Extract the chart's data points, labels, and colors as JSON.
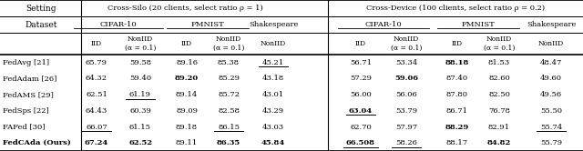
{
  "group1_header": "Cross-Silo (20 clients, select ratio ρ = 1)",
  "group2_header": "Cross-Device (100 clients, select ratio ρ = 0.2)",
  "row_labels": [
    "FedAvg [21]",
    "FedAdam [26]",
    "FedAMS [29]",
    "FedSps [22]",
    "FAFed [30]",
    "FedCAda (Ours)"
  ],
  "row_label_bold": [
    false,
    false,
    false,
    false,
    false,
    true
  ],
  "display_vals_g1": [
    [
      "65.79",
      "59.58",
      "89.16",
      "85.38",
      "45.21"
    ],
    [
      "64.32",
      "59.40",
      "89.20",
      "85.29",
      "43.18"
    ],
    [
      "62.51",
      "61.19",
      "89.14",
      "85.72",
      "43.01"
    ],
    [
      "64.43",
      "60.39",
      "89.09",
      "82.58",
      "43.29"
    ],
    [
      "66.07",
      "61.15",
      "89.18",
      "86.15",
      "43.03"
    ],
    [
      "67.24",
      "62.52",
      "89.11",
      "86.35",
      "45.84"
    ]
  ],
  "display_vals_g2": [
    [
      "56.71",
      "53.34",
      "88.18",
      "81.53",
      "48.47"
    ],
    [
      "57.29",
      "59.06",
      "87.40",
      "82.60",
      "49.60"
    ],
    [
      "56.00",
      "56.06",
      "87.80",
      "82.50",
      "49.56"
    ],
    [
      "63.04",
      "53.79",
      "86.71",
      "76.78",
      "55.50"
    ],
    [
      "62.70",
      "57.97",
      "88.29",
      "82.91",
      "55.74"
    ],
    [
      "66.508",
      "58.26",
      "88.17",
      "84.82",
      "55.79"
    ]
  ],
  "bold_g1": [
    [
      false,
      false,
      false,
      false,
      false
    ],
    [
      false,
      false,
      true,
      false,
      false
    ],
    [
      false,
      false,
      false,
      false,
      false
    ],
    [
      false,
      false,
      false,
      false,
      false
    ],
    [
      false,
      false,
      false,
      false,
      false
    ],
    [
      true,
      true,
      false,
      true,
      true
    ]
  ],
  "bold_g2": [
    [
      false,
      false,
      true,
      false,
      false
    ],
    [
      false,
      true,
      false,
      false,
      false
    ],
    [
      false,
      false,
      false,
      false,
      false
    ],
    [
      true,
      false,
      false,
      false,
      false
    ],
    [
      false,
      false,
      true,
      false,
      false
    ],
    [
      true,
      false,
      false,
      true,
      false
    ]
  ],
  "underline_g1": [
    [
      false,
      false,
      false,
      false,
      true
    ],
    [
      false,
      false,
      false,
      false,
      false
    ],
    [
      false,
      true,
      false,
      false,
      false
    ],
    [
      false,
      false,
      false,
      false,
      false
    ],
    [
      true,
      false,
      false,
      true,
      false
    ],
    [
      false,
      false,
      false,
      false,
      false
    ]
  ],
  "underline_g2": [
    [
      false,
      false,
      false,
      false,
      false
    ],
    [
      false,
      false,
      false,
      false,
      false
    ],
    [
      false,
      false,
      false,
      false,
      false
    ],
    [
      true,
      false,
      false,
      false,
      false
    ],
    [
      false,
      false,
      false,
      false,
      true
    ],
    [
      true,
      true,
      false,
      false,
      false
    ]
  ]
}
